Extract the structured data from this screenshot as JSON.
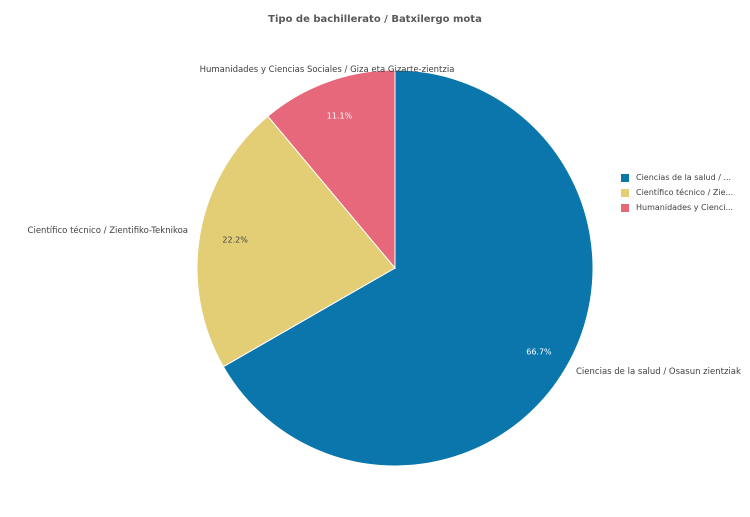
{
  "chart_data": {
    "type": "pie",
    "title": "Tipo de bachillerato / Batxilergo mota",
    "slices": [
      {
        "label": "Ciencias de la salud / Osasun zientziak",
        "legend_label": "Ciencias de la salud / ...",
        "value": 66.7,
        "value_label": "66.7%",
        "color": "#0b76ab",
        "pct_color": "#ffffff"
      },
      {
        "label": "Científico técnico / Zientifiko-Teknikoa",
        "legend_label": "Científico técnico / Zie...",
        "value": 22.2,
        "value_label": "22.2%",
        "color": "#e3ce75",
        "pct_color": "#404040"
      },
      {
        "label": "Humanidades y Ciencias Sociales / Giza eta Gizarte-zientzia",
        "legend_label": "Humanidades y Cienci...",
        "value": 11.1,
        "value_label": "11.1%",
        "color": "#e6687a",
        "pct_color": "#ffffff"
      }
    ],
    "legend_position": "right"
  }
}
